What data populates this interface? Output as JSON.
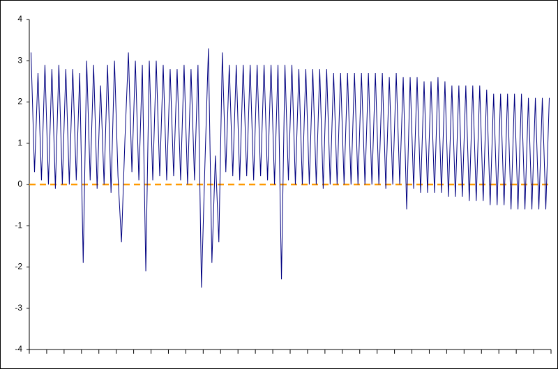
{
  "chart_data": {
    "type": "line",
    "categories": [
      null,
      null,
      null,
      null,
      null,
      null,
      null,
      null,
      null,
      null,
      null,
      null,
      null,
      null,
      null,
      null,
      null,
      null,
      null,
      null,
      null,
      null,
      null,
      null,
      null,
      null,
      null,
      null,
      null,
      null,
      null,
      null,
      null,
      null,
      null,
      null,
      null,
      null,
      null,
      null,
      null,
      null,
      null,
      null,
      null,
      null,
      null,
      null,
      null,
      null,
      null,
      null,
      null,
      null,
      null,
      null,
      null,
      null,
      null,
      null,
      null,
      null,
      null,
      null,
      null,
      null,
      null,
      null,
      null,
      null,
      null,
      null,
      null,
      null,
      null,
      null,
      null,
      null,
      null,
      null,
      null,
      null,
      null,
      null,
      null,
      null,
      null,
      null,
      null,
      null,
      null,
      null,
      null,
      null,
      null,
      null,
      null,
      null,
      null,
      null,
      null,
      null,
      null,
      null,
      null,
      null,
      null,
      null,
      null,
      null,
      null,
      null,
      null,
      null,
      null,
      null,
      null,
      null,
      null,
      null,
      null,
      null,
      null,
      null,
      null,
      null,
      null,
      null,
      null,
      null,
      null,
      null,
      null,
      null,
      null,
      null,
      null,
      null,
      null,
      null,
      null,
      null,
      null,
      null,
      null,
      null,
      null,
      null,
      null,
      null
    ],
    "series": [
      {
        "color": "#000080",
        "values": [
          3.2,
          0.3,
          2.7,
          0.1,
          2.9,
          0.0,
          2.8,
          -0.1,
          2.9,
          0.0,
          2.8,
          0.0,
          2.8,
          0.1,
          2.7,
          -1.9,
          3.0,
          0.1,
          2.9,
          -0.1,
          2.4,
          0.0,
          2.9,
          -0.2,
          3.0,
          0.2,
          -1.4,
          1.1,
          3.2,
          0.3,
          3.0,
          0.1,
          2.9,
          -2.1,
          3.0,
          0.1,
          3.0,
          0.2,
          2.9,
          0.1,
          2.8,
          0.2,
          2.8,
          0.1,
          2.9,
          0.0,
          2.8,
          0.1,
          2.9,
          -2.5,
          0.5,
          3.3,
          -1.9,
          0.7,
          -1.4,
          3.2,
          0.3,
          2.9,
          0.2,
          2.9,
          0.1,
          2.9,
          0.2,
          2.9,
          0.1,
          2.9,
          0.2,
          2.9,
          0.1,
          2.9,
          0.0,
          2.9,
          -2.3,
          2.9,
          0.1,
          2.9,
          0.0,
          2.8,
          0.0,
          2.8,
          0.0,
          2.8,
          0.0,
          2.8,
          -0.1,
          2.8,
          0.0,
          2.7,
          0.0,
          2.7,
          0.0,
          2.7,
          0.0,
          2.7,
          0.0,
          2.7,
          0.0,
          2.7,
          0.0,
          2.7,
          0.0,
          2.7,
          -0.1,
          2.6,
          0.0,
          2.7,
          0.0,
          2.6,
          -0.6,
          2.6,
          -0.1,
          2.6,
          -0.2,
          2.5,
          -0.2,
          2.5,
          -0.2,
          2.6,
          -0.2,
          2.5,
          -0.3,
          2.4,
          -0.3,
          2.4,
          -0.3,
          2.4,
          -0.4,
          2.4,
          -0.4,
          2.4,
          -0.4,
          2.3,
          -0.5,
          2.2,
          -0.5,
          2.2,
          -0.5,
          2.2,
          -0.6,
          2.2,
          -0.6,
          2.2,
          -0.6,
          2.1,
          -0.6,
          2.1,
          -0.6,
          2.1,
          -0.6,
          2.1
        ]
      }
    ],
    "reference_line": {
      "value": 0,
      "color": "#ff9900",
      "dashed": true
    },
    "ylim": [
      -4,
      4
    ],
    "yticks": [
      -4,
      -3,
      -2,
      -1,
      0,
      1,
      2,
      3,
      4
    ],
    "x_tick_every": 5,
    "grid": false
  }
}
